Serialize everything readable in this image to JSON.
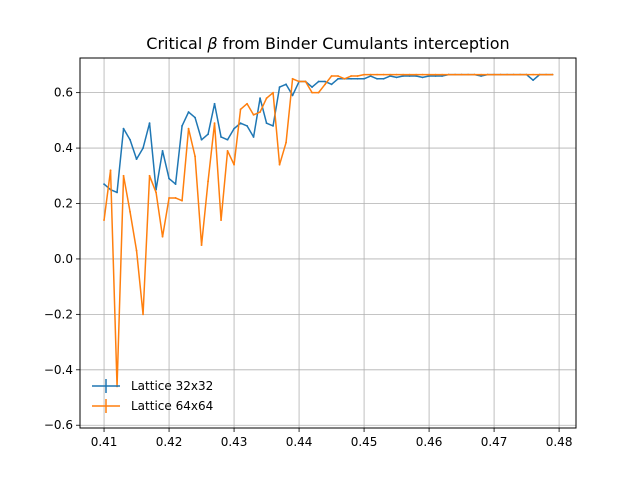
{
  "chart_data": {
    "type": "line",
    "title_prefix": "Critical ",
    "title_symbol": "β",
    "title_suffix": " from Binder Cumulants interception",
    "xlim": [
      0.4063,
      0.4826
    ],
    "ylim": [
      -0.61,
      0.725
    ],
    "xticks": [
      0.41,
      0.42,
      0.43,
      0.44,
      0.45,
      0.46,
      0.47,
      0.48
    ],
    "xtick_labels": [
      "0.41",
      "0.42",
      "0.43",
      "0.44",
      "0.45",
      "0.46",
      "0.47",
      "0.48"
    ],
    "yticks": [
      -0.6,
      -0.4,
      -0.2,
      0.0,
      0.2,
      0.4,
      0.6
    ],
    "ytick_labels": [
      "−0.6",
      "−0.4",
      "−0.2",
      "0.0",
      "0.2",
      "0.4",
      "0.6"
    ],
    "grid": true,
    "legend_position": "lower-left",
    "series": [
      {
        "name": "Lattice 32x32",
        "color": "#1f77b4",
        "x": [
          0.41,
          0.411,
          0.412,
          0.413,
          0.414,
          0.415,
          0.416,
          0.417,
          0.418,
          0.419,
          0.42,
          0.421,
          0.422,
          0.423,
          0.424,
          0.425,
          0.426,
          0.427,
          0.428,
          0.429,
          0.43,
          0.431,
          0.432,
          0.433,
          0.434,
          0.435,
          0.436,
          0.437,
          0.438,
          0.439,
          0.44,
          0.441,
          0.442,
          0.443,
          0.444,
          0.445,
          0.446,
          0.447,
          0.448,
          0.449,
          0.45,
          0.451,
          0.452,
          0.453,
          0.454,
          0.455,
          0.456,
          0.457,
          0.458,
          0.459,
          0.46,
          0.461,
          0.462,
          0.463,
          0.464,
          0.465,
          0.466,
          0.467,
          0.468,
          0.469,
          0.47,
          0.471,
          0.472,
          0.473,
          0.474,
          0.475,
          0.476,
          0.477,
          0.478,
          0.479
        ],
        "y": [
          0.27,
          0.25,
          0.24,
          0.47,
          0.43,
          0.36,
          0.4,
          0.49,
          0.25,
          0.39,
          0.29,
          0.27,
          0.48,
          0.53,
          0.51,
          0.43,
          0.45,
          0.56,
          0.44,
          0.43,
          0.47,
          0.49,
          0.48,
          0.44,
          0.58,
          0.49,
          0.48,
          0.62,
          0.63,
          0.59,
          0.64,
          0.64,
          0.62,
          0.64,
          0.64,
          0.63,
          0.65,
          0.65,
          0.65,
          0.65,
          0.65,
          0.66,
          0.65,
          0.65,
          0.66,
          0.655,
          0.66,
          0.66,
          0.66,
          0.655,
          0.66,
          0.66,
          0.66,
          0.665,
          0.665,
          0.665,
          0.665,
          0.665,
          0.66,
          0.665,
          0.665,
          0.665,
          0.665,
          0.665,
          0.665,
          0.665,
          0.645,
          0.665,
          0.665,
          0.665
        ]
      },
      {
        "name": "Lattice 64x64",
        "color": "#ff7f0e",
        "x": [
          0.41,
          0.411,
          0.412,
          0.413,
          0.414,
          0.415,
          0.416,
          0.417,
          0.418,
          0.419,
          0.42,
          0.421,
          0.422,
          0.423,
          0.424,
          0.425,
          0.426,
          0.427,
          0.428,
          0.429,
          0.43,
          0.431,
          0.432,
          0.433,
          0.434,
          0.435,
          0.436,
          0.437,
          0.438,
          0.439,
          0.44,
          0.441,
          0.442,
          0.443,
          0.444,
          0.445,
          0.446,
          0.447,
          0.448,
          0.449,
          0.45,
          0.451,
          0.452,
          0.453,
          0.454,
          0.455,
          0.456,
          0.457,
          0.458,
          0.459,
          0.46,
          0.461,
          0.462,
          0.463,
          0.464,
          0.465,
          0.466,
          0.467,
          0.468,
          0.469,
          0.47,
          0.471,
          0.472,
          0.473,
          0.474,
          0.475,
          0.476,
          0.477,
          0.478,
          0.479
        ],
        "y": [
          0.14,
          0.32,
          -0.46,
          0.3,
          0.17,
          0.03,
          -0.2,
          0.3,
          0.24,
          0.08,
          0.22,
          0.22,
          0.21,
          0.47,
          0.37,
          0.05,
          0.28,
          0.49,
          0.14,
          0.39,
          0.34,
          0.54,
          0.56,
          0.52,
          0.53,
          0.58,
          0.6,
          0.34,
          0.42,
          0.65,
          0.64,
          0.64,
          0.6,
          0.6,
          0.63,
          0.66,
          0.66,
          0.65,
          0.66,
          0.66,
          0.665,
          0.665,
          0.665,
          0.665,
          0.665,
          0.665,
          0.665,
          0.665,
          0.665,
          0.665,
          0.665,
          0.665,
          0.665,
          0.665,
          0.665,
          0.665,
          0.665,
          0.665,
          0.665,
          0.665,
          0.665,
          0.665,
          0.665,
          0.665,
          0.665,
          0.665,
          0.665,
          0.665,
          0.665,
          0.665
        ]
      }
    ]
  }
}
